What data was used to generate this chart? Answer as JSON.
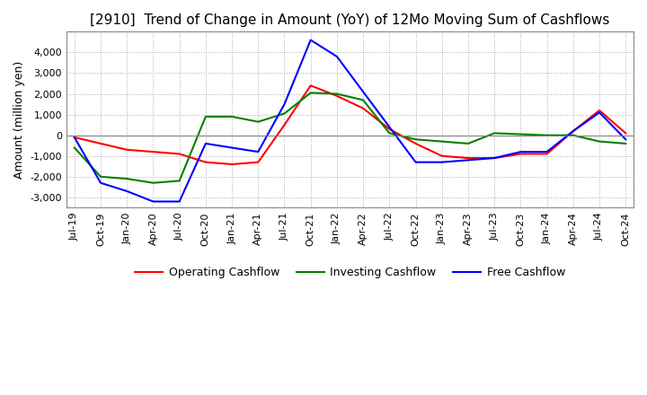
{
  "title": "[2910]  Trend of Change in Amount (YoY) of 12Mo Moving Sum of Cashflows",
  "ylabel": "Amount (million yen)",
  "ylim": [
    -3500,
    5000
  ],
  "yticks": [
    -3000,
    -2000,
    -1000,
    0,
    1000,
    2000,
    3000,
    4000
  ],
  "x_labels": [
    "Jul-19",
    "Oct-19",
    "Jan-20",
    "Apr-20",
    "Jul-20",
    "Oct-20",
    "Jan-21",
    "Apr-21",
    "Jul-21",
    "Oct-21",
    "Jan-22",
    "Apr-22",
    "Jul-22",
    "Oct-22",
    "Jan-23",
    "Apr-23",
    "Jul-23",
    "Oct-23",
    "Jan-24",
    "Apr-24",
    "Jul-24",
    "Oct-24"
  ],
  "operating": [
    -100,
    -400,
    -700,
    -800,
    -900,
    -1300,
    -1400,
    -1300,
    500,
    2400,
    1900,
    1300,
    300,
    -400,
    -1000,
    -1100,
    -1100,
    -900,
    -900,
    200,
    1200,
    100
  ],
  "investing": [
    -600,
    -2000,
    -2100,
    -2300,
    -2200,
    900,
    900,
    650,
    1050,
    2050,
    2000,
    1700,
    100,
    -200,
    -300,
    -400,
    100,
    50,
    0,
    0,
    -300,
    -400
  ],
  "free": [
    -100,
    -2300,
    -2700,
    -3200,
    -3200,
    -400,
    -600,
    -800,
    1500,
    4600,
    3800,
    2100,
    400,
    -1300,
    -1300,
    -1200,
    -1100,
    -800,
    -800,
    200,
    1100,
    -200
  ],
  "line_colors": {
    "operating": "#ff0000",
    "investing": "#008000",
    "free": "#0000ff"
  },
  "legend_labels": [
    "Operating Cashflow",
    "Investing Cashflow",
    "Free Cashflow"
  ],
  "title_fontsize": 11,
  "tick_fontsize": 8,
  "ylabel_fontsize": 9
}
